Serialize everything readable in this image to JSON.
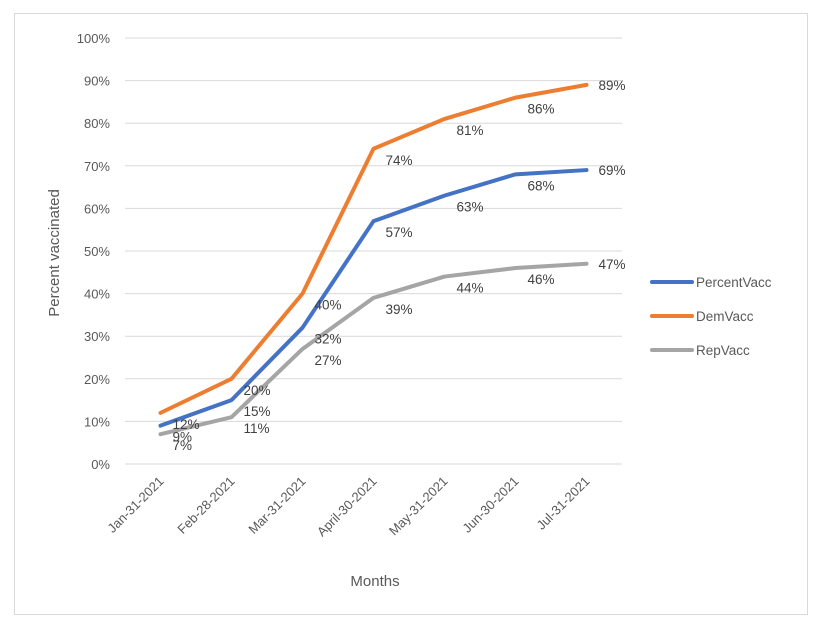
{
  "chart_data": {
    "type": "line",
    "title": "",
    "xlabel": "Months",
    "ylabel": "Percent vaccinated",
    "categories": [
      "Jan-31-2021",
      "Feb-28-2021",
      "Mar-31-2021",
      "April-30-2021",
      "May-31-2021",
      "Jun-30-2021",
      "Jul-31-2021"
    ],
    "ylim": [
      0,
      100
    ],
    "yticks": [
      "0%",
      "10%",
      "20%",
      "30%",
      "40%",
      "50%",
      "60%",
      "70%",
      "80%",
      "90%",
      "100%"
    ],
    "grid": true,
    "legend_position": "right",
    "series": [
      {
        "name": "PercentVacc",
        "color": "#4472c4",
        "values": [
          9,
          15,
          32,
          57,
          63,
          68,
          69
        ],
        "labels": [
          "9%",
          "15%",
          "32%",
          "57%",
          "63%",
          "68%",
          "69%"
        ]
      },
      {
        "name": "DemVacc",
        "color": "#ed7d31",
        "values": [
          12,
          20,
          40,
          74,
          81,
          86,
          89
        ],
        "labels": [
          "12%",
          "20%",
          "40%",
          "74%",
          "81%",
          "86%",
          "89%"
        ]
      },
      {
        "name": "RepVacc",
        "color": "#a5a5a5",
        "values": [
          7,
          11,
          27,
          39,
          44,
          46,
          47
        ],
        "labels": [
          "7%",
          "11%",
          "27%",
          "39%",
          "44%",
          "46%",
          "47%"
        ]
      }
    ]
  }
}
